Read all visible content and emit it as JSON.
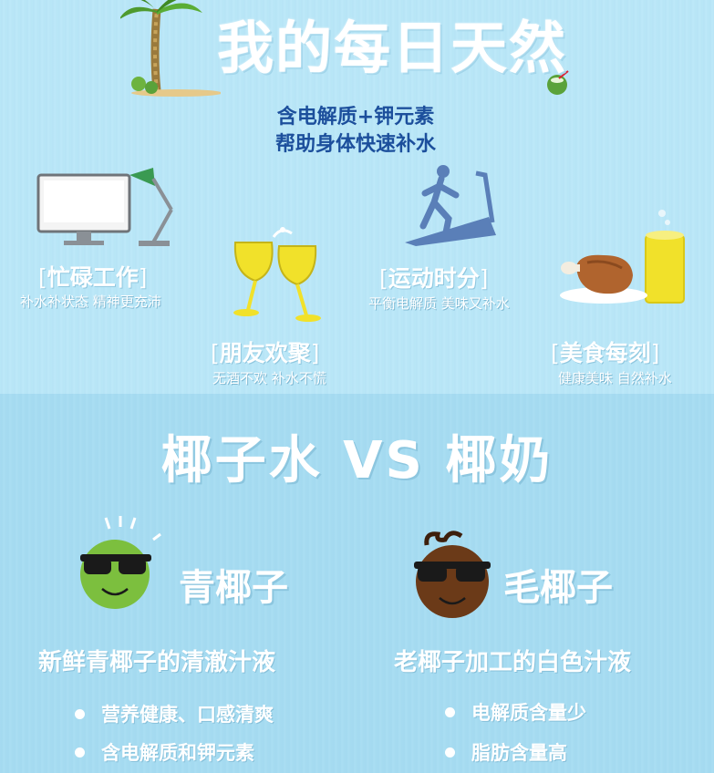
{
  "header": {
    "title": "我的每日天然",
    "subtitle_line1": "含电解质+钾元素",
    "subtitle_line2": "帮助身体快速补水"
  },
  "occasions": [
    {
      "label": "忙碌工作",
      "desc": "补水补状态 精神更充沛",
      "icon": "computer-lamp-icon"
    },
    {
      "label": "朋友欢聚",
      "desc": "无酒不欢 补水不慌",
      "icon": "cheers-glasses-icon"
    },
    {
      "label": "运动时分",
      "desc": "平衡电解质 美味又补水",
      "icon": "treadmill-runner-icon"
    },
    {
      "label": "美食每刻",
      "desc": "健康美味 自然补水",
      "icon": "meat-drink-icon"
    }
  ],
  "comparison": {
    "heading": "椰子水 VS 椰奶",
    "left": {
      "name": "青椰子",
      "desc": "新鲜青椰子的清澈汁液",
      "bullets": [
        "营养健康、口感清爽",
        "含电解质和钾元素"
      ],
      "color": "#7cbf3e"
    },
    "right": {
      "name": "毛椰子",
      "desc": "老椰子加工的白色汁液",
      "bullets": [
        "电解质含量少",
        "脂肪含量高"
      ],
      "color": "#6b3a18"
    }
  },
  "colors": {
    "accent_blue": "#1c4f9c",
    "background": "#b9e6f7"
  }
}
